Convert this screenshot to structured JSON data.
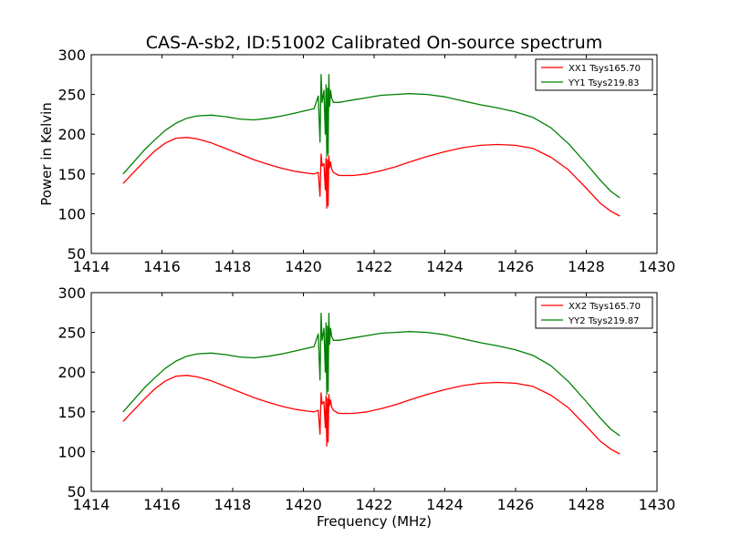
{
  "title": "CAS-A-sb2, ID:51002 Calibrated On-source spectrum",
  "xlabel": "Frequency (MHz)",
  "ylabel": "Power in Kelvin",
  "chart_data": [
    {
      "type": "line",
      "xlim": [
        1414,
        1430
      ],
      "ylim": [
        50,
        300
      ],
      "xticks": [
        1414,
        1416,
        1418,
        1420,
        1422,
        1424,
        1426,
        1428,
        1430
      ],
      "yticks": [
        50,
        100,
        150,
        200,
        250,
        300
      ],
      "ylabel": "Power in Kelvin",
      "legend_position": "top-right",
      "series": [
        {
          "name": "XX1 Tsys165.70",
          "color": "#ff0000",
          "x": [
            1414.9,
            1415.2,
            1415.5,
            1415.8,
            1416.1,
            1416.4,
            1416.7,
            1417.0,
            1417.4,
            1417.8,
            1418.2,
            1418.6,
            1419.0,
            1419.4,
            1419.8,
            1420.1,
            1420.3,
            1420.42,
            1420.47,
            1420.5,
            1420.53,
            1420.58,
            1420.62,
            1420.64,
            1420.66,
            1420.68,
            1420.7,
            1420.72,
            1420.74,
            1420.77,
            1420.8,
            1420.85,
            1421.0,
            1421.4,
            1421.8,
            1422.2,
            1422.6,
            1423.0,
            1423.5,
            1424.0,
            1424.5,
            1425.0,
            1425.5,
            1426.0,
            1426.5,
            1427.0,
            1427.5,
            1428.0,
            1428.4,
            1428.7,
            1428.95
          ],
          "y": [
            138,
            152,
            166,
            179,
            189,
            195,
            196,
            194,
            189,
            182,
            175,
            168,
            162,
            157,
            153,
            151,
            150,
            152,
            122,
            175,
            160,
            163,
            130,
            170,
            107,
            168,
            110,
            173,
            158,
            165,
            156,
            152,
            148,
            148,
            150,
            154,
            159,
            165,
            172,
            178,
            183,
            186,
            187,
            186,
            182,
            171,
            155,
            132,
            113,
            103,
            97
          ]
        },
        {
          "name": "YY1 Tsys219.83",
          "color": "#008000",
          "x": [
            1414.9,
            1415.2,
            1415.5,
            1415.8,
            1416.1,
            1416.4,
            1416.7,
            1417.0,
            1417.4,
            1417.8,
            1418.2,
            1418.6,
            1419.0,
            1419.4,
            1419.8,
            1420.1,
            1420.3,
            1420.42,
            1420.47,
            1420.5,
            1420.53,
            1420.58,
            1420.62,
            1420.64,
            1420.66,
            1420.68,
            1420.7,
            1420.72,
            1420.74,
            1420.77,
            1420.8,
            1420.85,
            1421.0,
            1421.4,
            1421.8,
            1422.2,
            1422.6,
            1423.0,
            1423.5,
            1424.0,
            1424.5,
            1425.0,
            1425.5,
            1426.0,
            1426.5,
            1427.0,
            1427.5,
            1428.0,
            1428.4,
            1428.7,
            1428.95
          ],
          "y": [
            150,
            165,
            180,
            193,
            205,
            214,
            220,
            223,
            224,
            222,
            219,
            218,
            220,
            223,
            227,
            230,
            232,
            248,
            190,
            275,
            240,
            255,
            200,
            262,
            172,
            258,
            175,
            275,
            235,
            255,
            245,
            240,
            240,
            243,
            246,
            249,
            250,
            251,
            250,
            247,
            242,
            237,
            233,
            228,
            221,
            208,
            188,
            163,
            142,
            128,
            120
          ]
        }
      ]
    },
    {
      "type": "line",
      "xlim": [
        1414,
        1430
      ],
      "ylim": [
        50,
        300
      ],
      "xticks": [
        1414,
        1416,
        1418,
        1420,
        1422,
        1424,
        1426,
        1428,
        1430
      ],
      "yticks": [
        50,
        100,
        150,
        200,
        250,
        300
      ],
      "xlabel": "Frequency (MHz)",
      "legend_position": "top-right",
      "series": [
        {
          "name": "XX2 Tsys165.70",
          "color": "#ff0000",
          "x": [
            1414.9,
            1415.2,
            1415.5,
            1415.8,
            1416.1,
            1416.4,
            1416.7,
            1417.0,
            1417.4,
            1417.8,
            1418.2,
            1418.6,
            1419.0,
            1419.4,
            1419.8,
            1420.1,
            1420.3,
            1420.42,
            1420.47,
            1420.5,
            1420.53,
            1420.58,
            1420.62,
            1420.64,
            1420.66,
            1420.68,
            1420.7,
            1420.72,
            1420.74,
            1420.77,
            1420.8,
            1420.85,
            1421.0,
            1421.4,
            1421.8,
            1422.2,
            1422.6,
            1423.0,
            1423.5,
            1424.0,
            1424.5,
            1425.0,
            1425.5,
            1426.0,
            1426.5,
            1427.0,
            1427.5,
            1428.0,
            1428.4,
            1428.7,
            1428.95
          ],
          "y": [
            138,
            152,
            166,
            179,
            189,
            195,
            196,
            194,
            189,
            182,
            175,
            168,
            162,
            157,
            153,
            151,
            150,
            152,
            122,
            174,
            160,
            163,
            130,
            170,
            107,
            167,
            112,
            172,
            158,
            165,
            156,
            152,
            148,
            148,
            150,
            154,
            159,
            165,
            172,
            178,
            183,
            186,
            187,
            186,
            182,
            171,
            155,
            132,
            113,
            103,
            97
          ]
        },
        {
          "name": "YY2 Tsys219.87",
          "color": "#008000",
          "x": [
            1414.9,
            1415.2,
            1415.5,
            1415.8,
            1416.1,
            1416.4,
            1416.7,
            1417.0,
            1417.4,
            1417.8,
            1418.2,
            1418.6,
            1419.0,
            1419.4,
            1419.8,
            1420.1,
            1420.3,
            1420.42,
            1420.47,
            1420.5,
            1420.53,
            1420.58,
            1420.62,
            1420.64,
            1420.66,
            1420.68,
            1420.7,
            1420.72,
            1420.74,
            1420.77,
            1420.8,
            1420.85,
            1421.0,
            1421.4,
            1421.8,
            1422.2,
            1422.6,
            1423.0,
            1423.5,
            1424.0,
            1424.5,
            1425.0,
            1425.5,
            1426.0,
            1426.5,
            1427.0,
            1427.5,
            1428.0,
            1428.4,
            1428.7,
            1428.95
          ],
          "y": [
            150,
            165,
            180,
            193,
            205,
            214,
            220,
            223,
            224,
            222,
            219,
            218,
            220,
            223,
            227,
            230,
            232,
            248,
            190,
            274,
            240,
            255,
            200,
            262,
            172,
            258,
            176,
            274,
            235,
            255,
            245,
            240,
            240,
            243,
            246,
            249,
            250,
            251,
            250,
            247,
            242,
            237,
            233,
            228,
            221,
            208,
            188,
            163,
            142,
            128,
            120
          ]
        }
      ]
    }
  ]
}
